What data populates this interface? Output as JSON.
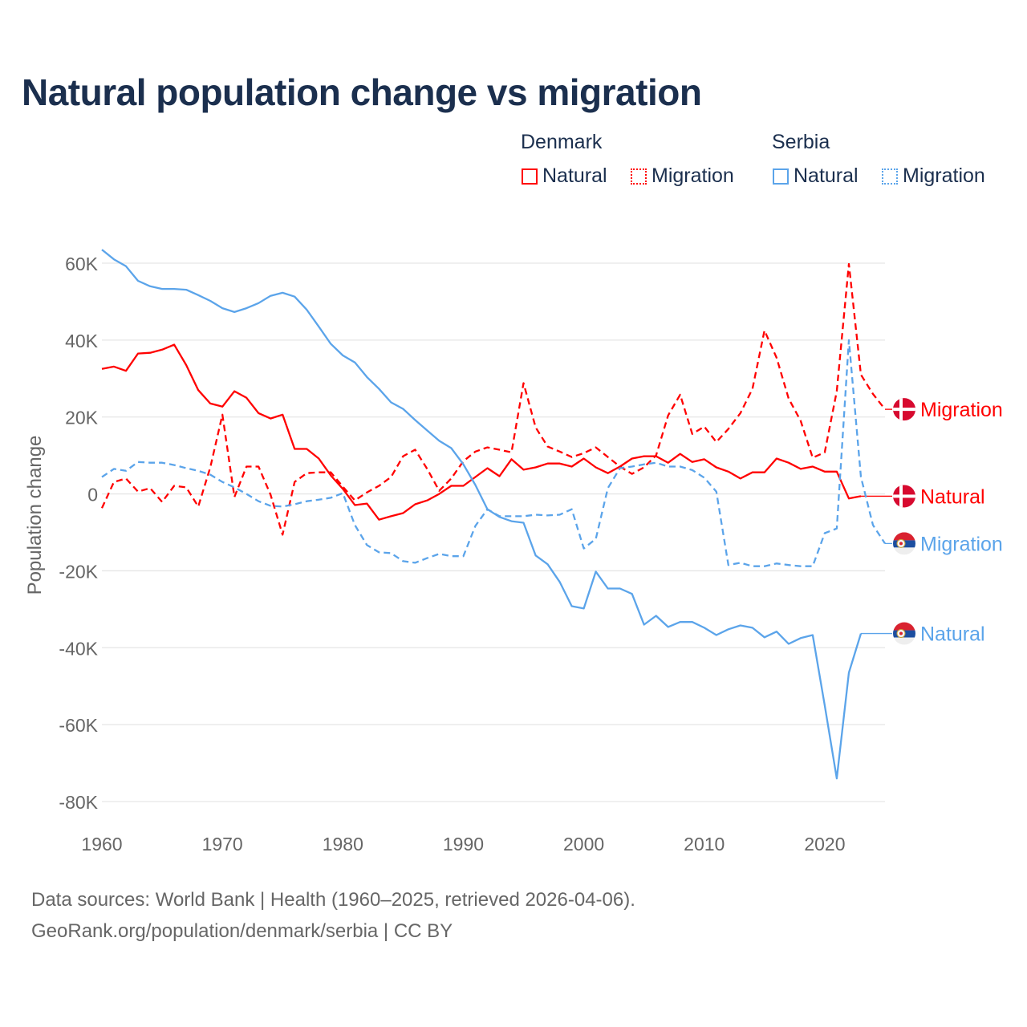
{
  "title": "Natural population change vs migration",
  "legend": {
    "groups": [
      {
        "name": "Denmark",
        "items": [
          "Natural",
          "Migration"
        ],
        "color": "#ff0000"
      },
      {
        "name": "Serbia",
        "items": [
          "Natural",
          "Migration"
        ],
        "color": "#5ba4ea"
      }
    ]
  },
  "footer": {
    "line1": "Data sources: World Bank | Health (1960–2025, retrieved 2026-04-06).",
    "line2": "GeoRank.org/population/denmark/serbia | CC BY"
  },
  "chart_data": {
    "type": "line",
    "title": "Natural population change vs migration",
    "xlabel": "",
    "ylabel": "Population change",
    "xlim": [
      1960,
      2025
    ],
    "ylim": [
      -80000,
      60000
    ],
    "x_ticks": [
      1960,
      1970,
      1980,
      1990,
      2000,
      2010,
      2020
    ],
    "x_tick_labels": [
      "1960",
      "1970",
      "1980",
      "1990",
      "2000",
      "2010",
      "2020"
    ],
    "y_ticks": [
      60000,
      40000,
      20000,
      0,
      -20000,
      -40000,
      -60000,
      -80000
    ],
    "y_tick_labels": [
      "60K",
      "40K",
      "20K",
      "0",
      "-20K",
      "-40K",
      "-60K",
      "-80K"
    ],
    "grid": true,
    "legend_position": "top-right",
    "x_start": 1960,
    "series": [
      {
        "name": "Denmark Natural",
        "end_label": "Migration_dummy",
        "country": "Denmark",
        "kind": "Natural",
        "color": "#ff0000",
        "dash": false,
        "values": [
          32500,
          33100,
          32000,
          36500,
          36700,
          37500,
          38800,
          33500,
          27000,
          23500,
          22700,
          26700,
          25000,
          21000,
          19600,
          20600,
          11700,
          11700,
          9200,
          4800,
          1300,
          -2900,
          -2500,
          -6700,
          -5800,
          -5000,
          -2700,
          -1700,
          0,
          2100,
          2100,
          4400,
          6700,
          4600,
          9000,
          6300,
          6900,
          7900,
          7900,
          7100,
          9200,
          6900,
          5400,
          7100,
          9200,
          9800,
          9800,
          8100,
          10400,
          8300,
          9000,
          6900,
          5800,
          4000,
          5600,
          5600,
          9200,
          8100,
          6500,
          7100,
          5800,
          5800,
          -1200,
          -600
        ]
      },
      {
        "name": "Denmark Migration",
        "country": "Denmark",
        "kind": "Migration",
        "color": "#ff0000",
        "dash": true,
        "values": [
          -3700,
          3100,
          4000,
          600,
          1500,
          -2100,
          2100,
          1700,
          -3300,
          6900,
          20600,
          -800,
          7100,
          7100,
          -200,
          -10600,
          3100,
          5400,
          5600,
          5600,
          1900,
          -1700,
          400,
          2100,
          4400,
          9800,
          11500,
          6500,
          800,
          4000,
          8500,
          11000,
          12100,
          11500,
          10800,
          28800,
          17300,
          12300,
          11000,
          9600,
          10600,
          12100,
          9600,
          7100,
          5200,
          6900,
          10000,
          20400,
          25800,
          15600,
          17500,
          13500,
          16900,
          21000,
          27300,
          42500,
          35400,
          24800,
          19000,
          9400,
          10800,
          26700,
          59800,
          31000,
          26000,
          22000
        ]
      },
      {
        "name": "Serbia Natural",
        "country": "Serbia",
        "kind": "Natural",
        "color": "#5ba4ea",
        "dash": false,
        "values": [
          63500,
          61000,
          59200,
          55400,
          54000,
          53300,
          53300,
          53100,
          51700,
          50200,
          48300,
          47300,
          48300,
          49600,
          51500,
          52300,
          51300,
          47900,
          43500,
          39000,
          36000,
          34200,
          30400,
          27300,
          23800,
          22100,
          19200,
          16500,
          13800,
          11900,
          7700,
          2300,
          -4000,
          -6000,
          -7100,
          -7500,
          -16000,
          -18300,
          -22900,
          -29200,
          -29800,
          -20200,
          -24600,
          -24600,
          -26000,
          -34000,
          -31700,
          -34600,
          -33300,
          -33300,
          -34800,
          -36700,
          -35200,
          -34200,
          -34800,
          -37300,
          -35800,
          -39000,
          -37500,
          -36700,
          -55000,
          -74000,
          -46500,
          -36300
        ]
      },
      {
        "name": "Serbia Migration",
        "country": "Serbia",
        "kind": "Migration",
        "color": "#5ba4ea",
        "dash": true,
        "values": [
          4400,
          6500,
          6000,
          8300,
          8100,
          8100,
          7500,
          6700,
          6000,
          5000,
          3100,
          1700,
          0,
          -1900,
          -3100,
          -3300,
          -2700,
          -1900,
          -1500,
          -1000,
          200,
          -8100,
          -13300,
          -15200,
          -15400,
          -17500,
          -17900,
          -16700,
          -15600,
          -16200,
          -16200,
          -8300,
          -4000,
          -5800,
          -5800,
          -5800,
          -5400,
          -5600,
          -5400,
          -4000,
          -14200,
          -11700,
          1500,
          6700,
          7100,
          7700,
          8100,
          7100,
          7100,
          6200,
          4200,
          600,
          -18500,
          -17900,
          -18800,
          -18800,
          -18100,
          -18500,
          -18800,
          -18800,
          -10200,
          -9000,
          40000,
          4400,
          -8100,
          -12900
        ]
      }
    ],
    "end_labels": [
      {
        "series": 1,
        "text": "Migration",
        "flag": "denmark"
      },
      {
        "series": 0,
        "text": "Natural",
        "flag": "denmark"
      },
      {
        "series": 3,
        "text": "Migration",
        "flag": "serbia"
      },
      {
        "series": 2,
        "text": "Natural",
        "flag": "serbia"
      }
    ]
  }
}
